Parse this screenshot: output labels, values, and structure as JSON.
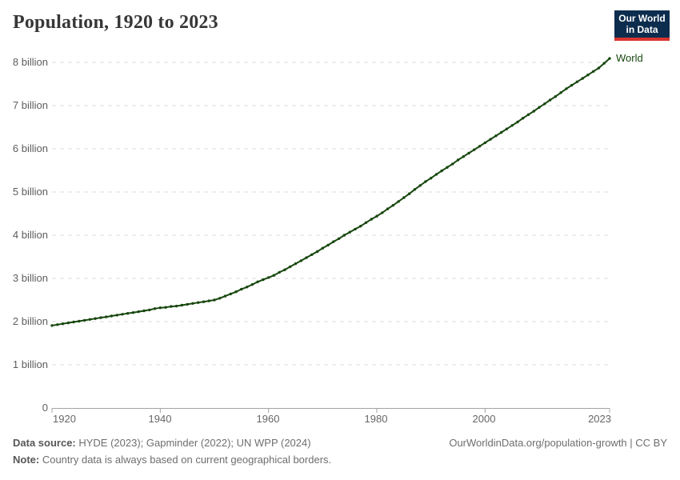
{
  "header": {
    "title": "Population, 1920 to 2023",
    "logo": {
      "line1": "Our World",
      "line2": "in Data",
      "bg_color": "#0d2d4e",
      "bar_color": "#d8352f",
      "text_color": "#ffffff"
    }
  },
  "chart_data": {
    "type": "line",
    "title": "Population, 1920 to 2023",
    "grid": "horizontal dashed gridlines, no vertical axis line",
    "legend_position": "end-of-line label",
    "ylim": [
      0,
      8.4
    ],
    "xlim": [
      1920,
      2023
    ],
    "y_tick_values": [
      0,
      1,
      2,
      3,
      4,
      5,
      6,
      7,
      8
    ],
    "y_tick_labels": [
      "0",
      "1 billion",
      "2 billion",
      "3 billion",
      "4 billion",
      "5 billion",
      "6 billion",
      "7 billion",
      "8 billion"
    ],
    "x_ticks": [
      1920,
      1940,
      1960,
      1980,
      2000,
      2023
    ],
    "series": [
      {
        "name": "World",
        "color": "#18470f",
        "marker": "dot",
        "years": [
          1920,
          1921,
          1922,
          1923,
          1924,
          1925,
          1926,
          1927,
          1928,
          1929,
          1930,
          1931,
          1932,
          1933,
          1934,
          1935,
          1936,
          1937,
          1938,
          1939,
          1940,
          1941,
          1942,
          1943,
          1944,
          1945,
          1946,
          1947,
          1948,
          1949,
          1950,
          1951,
          1952,
          1953,
          1954,
          1955,
          1956,
          1957,
          1958,
          1959,
          1960,
          1961,
          1962,
          1963,
          1964,
          1965,
          1966,
          1967,
          1968,
          1969,
          1970,
          1971,
          1972,
          1973,
          1974,
          1975,
          1976,
          1977,
          1978,
          1979,
          1980,
          1981,
          1982,
          1983,
          1984,
          1985,
          1986,
          1987,
          1988,
          1989,
          1990,
          1991,
          1992,
          1993,
          1994,
          1995,
          1996,
          1997,
          1998,
          1999,
          2000,
          2001,
          2002,
          2003,
          2004,
          2005,
          2006,
          2007,
          2008,
          2009,
          2010,
          2011,
          2012,
          2013,
          2014,
          2015,
          2016,
          2017,
          2018,
          2019,
          2020,
          2021,
          2022,
          2023
        ],
        "values_billions": [
          1.91,
          1.93,
          1.95,
          1.97,
          1.99,
          2.01,
          2.03,
          2.05,
          2.07,
          2.09,
          2.11,
          2.13,
          2.15,
          2.17,
          2.19,
          2.21,
          2.23,
          2.25,
          2.27,
          2.3,
          2.32,
          2.33,
          2.35,
          2.36,
          2.38,
          2.4,
          2.42,
          2.44,
          2.46,
          2.48,
          2.5,
          2.54,
          2.59,
          2.64,
          2.69,
          2.75,
          2.8,
          2.86,
          2.92,
          2.97,
          3.02,
          3.07,
          3.14,
          3.2,
          3.27,
          3.34,
          3.41,
          3.48,
          3.55,
          3.62,
          3.7,
          3.77,
          3.85,
          3.92,
          4.0,
          4.07,
          4.14,
          4.21,
          4.29,
          4.37,
          4.44,
          4.52,
          4.61,
          4.69,
          4.78,
          4.87,
          4.96,
          5.06,
          5.15,
          5.24,
          5.32,
          5.41,
          5.49,
          5.57,
          5.65,
          5.74,
          5.82,
          5.9,
          5.98,
          6.06,
          6.14,
          6.22,
          6.3,
          6.38,
          6.46,
          6.54,
          6.62,
          6.71,
          6.79,
          6.87,
          6.96,
          7.04,
          7.13,
          7.21,
          7.3,
          7.39,
          7.47,
          7.55,
          7.63,
          7.71,
          7.79,
          7.87,
          7.98,
          8.09
        ]
      }
    ],
    "end_label": "World",
    "colors": {
      "gridline": "#dedede",
      "axis": "#a3a3a3",
      "tick_text": "#5e5e5e"
    }
  },
  "footer": {
    "source_label": "Data source:",
    "source_text": " HYDE (2023); Gapminder (2022); UN WPP (2024)",
    "note_label": "Note:",
    "note_text": " Country data is always based on current geographical borders.",
    "link": "OurWorldinData.org/population-growth | CC BY"
  }
}
